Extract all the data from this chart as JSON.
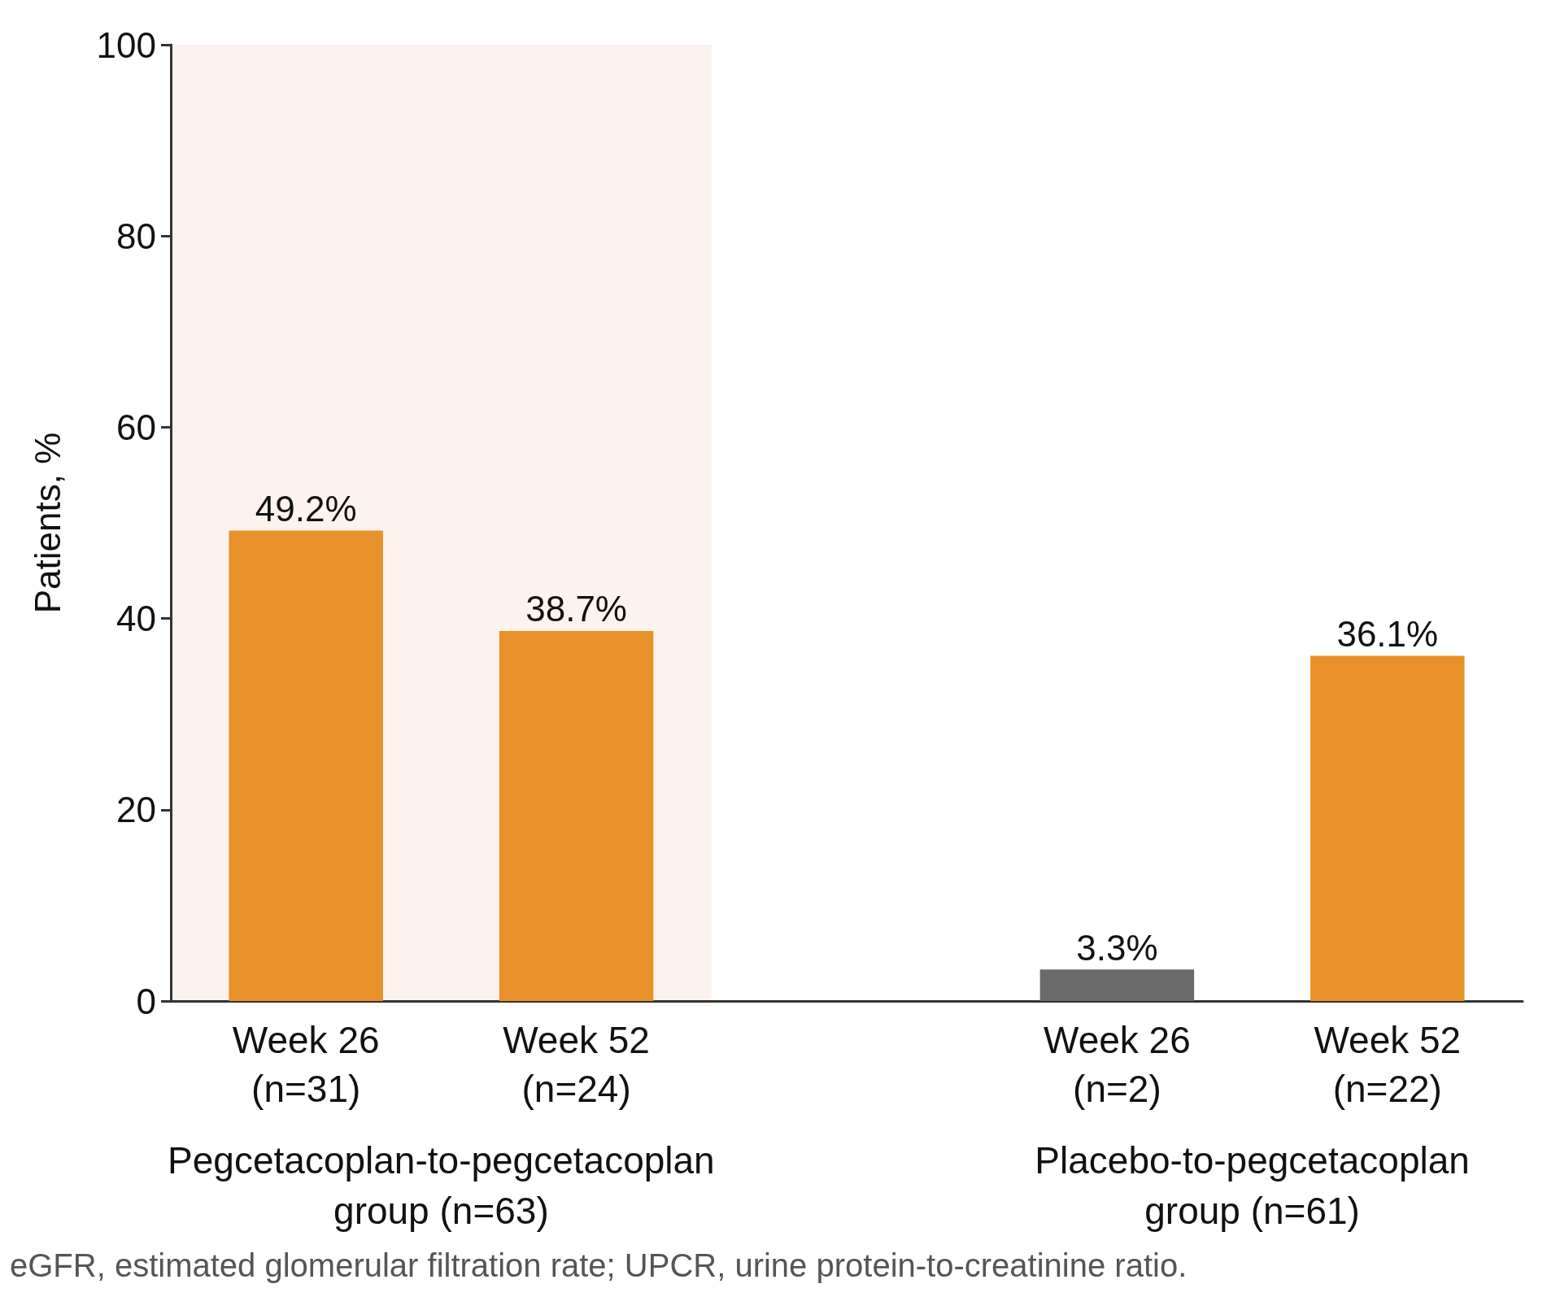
{
  "chart_data": {
    "type": "bar",
    "ylabel": "Patients, %",
    "categories": [
      "Week 26\n(n=31)",
      "Week 52\n(n=24)",
      null,
      "Week 26\n(n=2)",
      "Week 52\n(n=22)"
    ],
    "values": [
      49.2,
      38.7,
      null,
      3.3,
      36.1
    ],
    "colors": [
      "#e8912a",
      "#e8912a",
      null,
      "#6b6b6b",
      "#e8912a"
    ],
    "value_labels": [
      "49.2%",
      "38.7%",
      null,
      "3.3%",
      "36.1%"
    ],
    "ylim": [
      0,
      100
    ],
    "yticks": [
      0,
      20,
      40,
      60,
      80,
      100
    ],
    "grid": false,
    "bands": [
      {
        "axis": "x",
        "from": "Week 26\n(n=31)",
        "to": "Week 52\n(n=24)",
        "color": "#fcf3ee"
      }
    ],
    "annotations": [
      "Pegcetacoplan-to-pegcetacoplan\ngroup (n=63)",
      "Placebo-to-pegcetacoplan\ngroup (n=61)",
      "eGFR, estimated glomerular filtration rate; UPCR, urine protein-to-creatinine ratio."
    ]
  }
}
